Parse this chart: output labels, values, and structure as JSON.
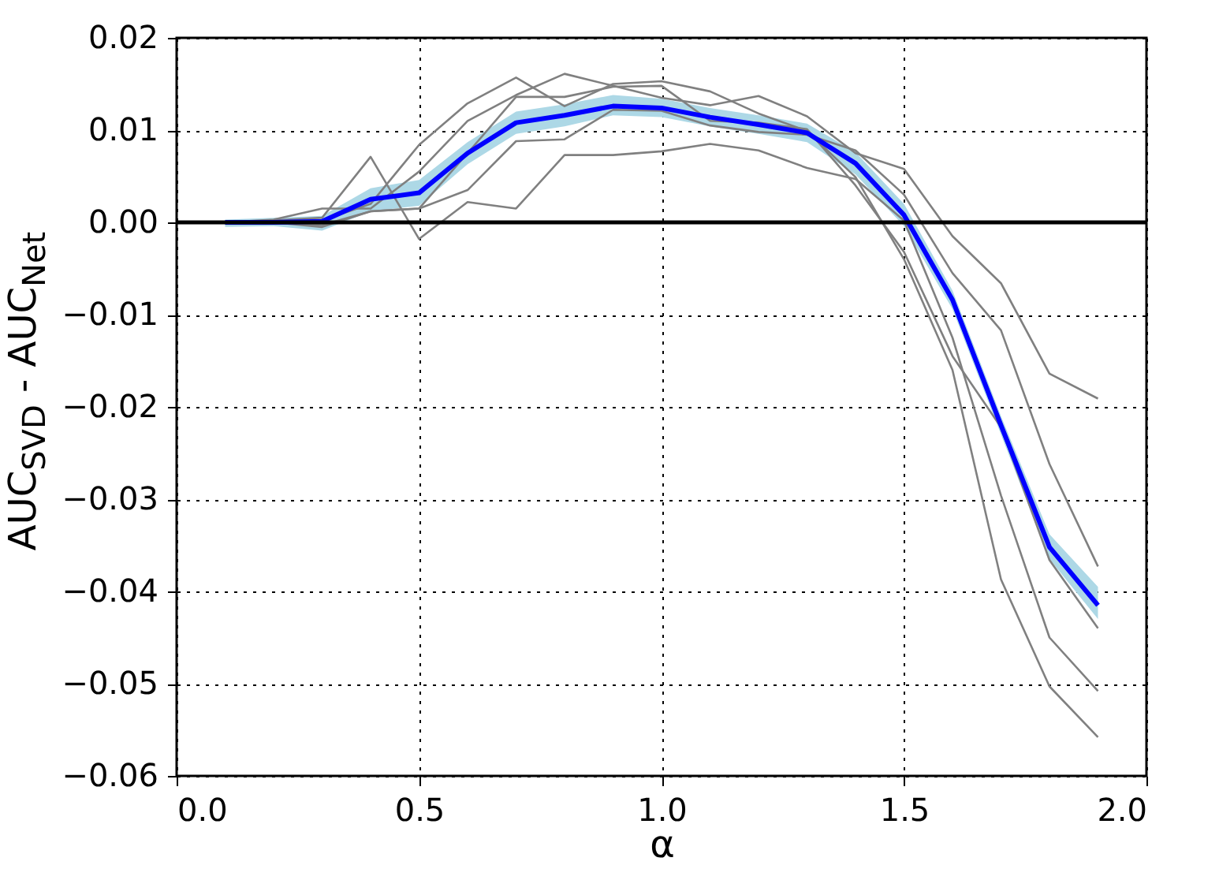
{
  "chart_data": {
    "type": "line",
    "xlabel": "α",
    "ylabel": "AUC$_{SVD}$ - AUC$_{Net}$",
    "x": [
      0.1,
      0.2,
      0.3,
      0.4,
      0.5,
      0.6,
      0.7,
      0.8,
      0.9,
      1.0,
      1.1,
      1.2,
      1.3,
      1.4,
      1.5,
      1.6,
      1.7,
      1.8,
      1.9
    ],
    "series": [
      {
        "color": "#808080",
        "values": [
          0,
          0.0002,
          0.0005,
          0.0071,
          -0.0018,
          0.0022,
          0.0015,
          0.0073,
          0.0073,
          0.0077,
          0.0085,
          0.0078,
          0.0059,
          0.0047,
          0.0002,
          -0.0125,
          -0.0296,
          -0.045,
          -0.0508
        ]
      },
      {
        "color": "#808080",
        "values": [
          0,
          0,
          0.0002,
          0.002,
          0.0084,
          0.0129,
          0.0157,
          0.0126,
          0.015,
          0.0153,
          0.0142,
          0.0118,
          0.0099,
          0.0049,
          -0.004,
          -0.016,
          -0.0387,
          -0.0503,
          -0.0558
        ]
      },
      {
        "color": "#808080",
        "values": [
          0,
          0.0003,
          0.0015,
          0.0015,
          0.0055,
          0.011,
          0.0138,
          0.0161,
          0.0148,
          0.0135,
          0.0127,
          0.0137,
          0.0115,
          0.0075,
          0.0058,
          -0.0015,
          -0.0066,
          -0.0164,
          -0.0191
        ]
      },
      {
        "color": "#808080",
        "values": [
          0,
          0,
          -0.0003,
          0.0012,
          0.0015,
          0.0035,
          0.0088,
          0.009,
          0.0122,
          0.0121,
          0.0105,
          0.0098,
          0.0095,
          0.0078,
          0.003,
          -0.0055,
          -0.0117,
          -0.0262,
          -0.0373
        ]
      },
      {
        "color": "#808080",
        "values": [
          0,
          0,
          -0.0005,
          0.0012,
          0.0015,
          0.0075,
          0.0136,
          0.0136,
          0.0147,
          0.0148,
          0.011,
          0.0108,
          0.0101,
          0.004,
          -0.0032,
          -0.0145,
          -0.0222,
          -0.0366,
          -0.044
        ]
      },
      {
        "color": "#0000ff",
        "values": [
          0,
          0,
          0.0001,
          0.0025,
          0.0032,
          0.0075,
          0.0108,
          0.0116,
          0.0126,
          0.0124,
          0.0114,
          0.0106,
          0.0097,
          0.0064,
          0.0008,
          -0.0084,
          -0.022,
          -0.0352,
          -0.0415
        ],
        "lower": [
          -0.0005,
          -0.0004,
          -0.0009,
          0.0012,
          0.0018,
          0.0063,
          0.0096,
          0.0104,
          0.0116,
          0.0114,
          0.0104,
          0.0096,
          0.0087,
          0.0052,
          -0.0004,
          -0.0094,
          -0.023,
          -0.0365,
          -0.043
        ],
        "upper": [
          0.0003,
          0.0005,
          0.0007,
          0.0037,
          0.0046,
          0.0087,
          0.012,
          0.0128,
          0.0138,
          0.0134,
          0.0124,
          0.0116,
          0.0107,
          0.0076,
          0.002,
          -0.0074,
          -0.021,
          -0.0338,
          -0.0395
        ]
      }
    ],
    "xlim": [
      0.0,
      2.0
    ],
    "xticks": [
      {
        "value": 0,
        "label": "0.0"
      },
      {
        "value": 0.5,
        "label": "0.5"
      },
      {
        "value": 1,
        "label": "1.0"
      },
      {
        "value": 1.5,
        "label": "1.5"
      },
      {
        "value": 2,
        "label": "2.0"
      }
    ],
    "ylim": [
      -0.06,
      0.02
    ],
    "yticks": [
      {
        "value": -0.06,
        "label": "−0.06"
      },
      {
        "value": -0.05,
        "label": "−0.05"
      },
      {
        "value": -0.04,
        "label": "−0.04"
      },
      {
        "value": -0.03,
        "label": "−0.03"
      },
      {
        "value": -0.02,
        "label": "−0.02"
      },
      {
        "value": -0.01,
        "label": "−0.01"
      },
      {
        "value": 0,
        "label": "0.00"
      },
      {
        "value": 0.01,
        "label": "0.01"
      },
      {
        "value": 0.02,
        "label": "0.02"
      }
    ],
    "ref_lines": [
      {
        "axis": "y",
        "value": 0,
        "color": "#000000"
      }
    ],
    "grid": true,
    "line_style": "solid",
    "legend": false
  }
}
